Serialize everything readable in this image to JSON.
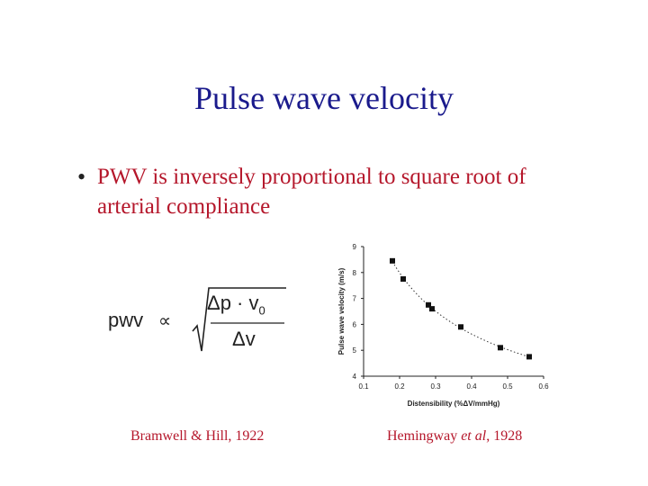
{
  "slide": {
    "title": "Pulse wave velocity",
    "bullet": "PWV is inversely proportional to square root of arterial compliance",
    "formula": {
      "lhs": "pwv",
      "proportional": "∝",
      "numerator": "Δp · v",
      "numerator_sub": "0",
      "denominator": "Δv"
    },
    "citation_left": "Bramwell & Hill, 1922",
    "citation_right_author": "Hemingway ",
    "citation_right_etal": "et al",
    "citation_right_year": ", 1928"
  },
  "chart_data": {
    "type": "scatter",
    "xlabel": "Distensibility (%ΔV/mmHg)",
    "ylabel": "Pulse wave velocity (m/s)",
    "xlim": [
      0.1,
      0.6
    ],
    "ylim": [
      4,
      9
    ],
    "xticks": [
      0.1,
      0.2,
      0.3,
      0.4,
      0.5,
      0.6
    ],
    "xtick_labels": [
      "0.1",
      "0.2",
      "0.3",
      "0.4",
      "0.5",
      "0.6"
    ],
    "yticks": [
      4,
      5,
      6,
      7,
      8,
      9
    ],
    "ytick_labels": [
      "4",
      "5",
      "6",
      "7",
      "8",
      "9"
    ],
    "grid": false,
    "trend_line": "dotted",
    "x": [
      0.18,
      0.21,
      0.28,
      0.29,
      0.37,
      0.48,
      0.56
    ],
    "y": [
      8.45,
      7.75,
      6.75,
      6.6,
      5.9,
      5.1,
      4.75
    ],
    "marker_color": "#111111"
  }
}
